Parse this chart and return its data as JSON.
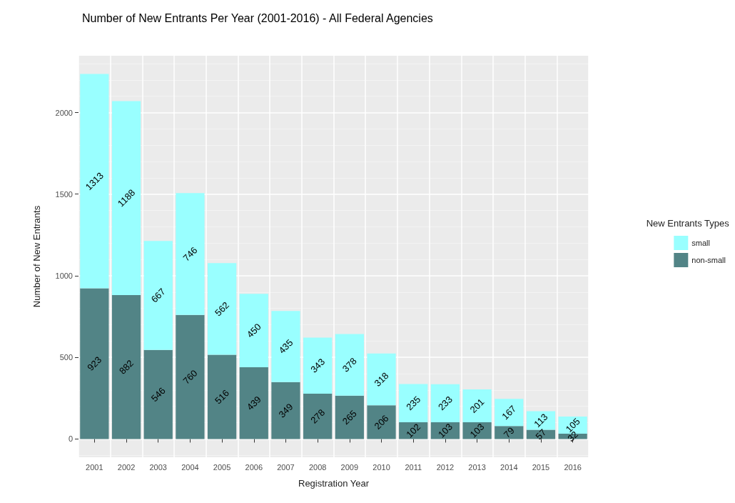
{
  "chart_data": {
    "type": "bar",
    "title": "Number of New Entrants Per Year (2001-2016) - All Federal Agencies",
    "xlabel": "Registration Year",
    "ylabel": "Number of New Entrants",
    "legend_title": "New Entrants Types",
    "categories": [
      "2001",
      "2002",
      "2003",
      "2004",
      "2005",
      "2006",
      "2007",
      "2008",
      "2009",
      "2010",
      "2011",
      "2012",
      "2013",
      "2014",
      "2015",
      "2016"
    ],
    "series": [
      {
        "name": "non-small",
        "color": "#528486",
        "values": [
          923,
          882,
          546,
          760,
          516,
          439,
          349,
          278,
          265,
          206,
          102,
          103,
          103,
          79,
          57,
          32
        ]
      },
      {
        "name": "small",
        "color": "#99ffff",
        "values": [
          1313,
          1188,
          667,
          746,
          562,
          450,
          435,
          343,
          378,
          318,
          235,
          233,
          201,
          167,
          113,
          105
        ]
      }
    ],
    "stacked": true,
    "data_labels": true,
    "ylim": [
      -112,
      2348
    ],
    "yticks": [
      0,
      500,
      1000,
      1500,
      2000
    ],
    "grid": true,
    "legend": "right"
  }
}
